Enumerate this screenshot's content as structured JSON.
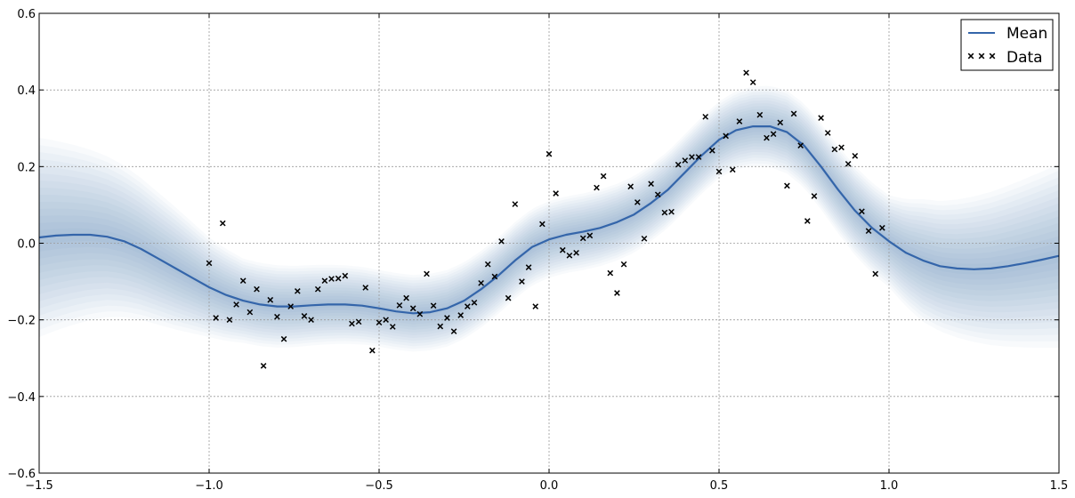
{
  "chart_data": {
    "type": "line",
    "xlim": [
      -1.5,
      1.5
    ],
    "ylim": [
      -0.6,
      0.6
    ],
    "xticks": [
      -1.5,
      -1.0,
      -0.5,
      0.0,
      0.5,
      1.0,
      1.5
    ],
    "xtick_labels": [
      "−1.5",
      "−1.0",
      "−0.5",
      "0.0",
      "0.5",
      "1.0",
      "1.5"
    ],
    "yticks": [
      -0.6,
      -0.4,
      -0.2,
      0.0,
      0.2,
      0.4,
      0.6
    ],
    "ytick_labels": [
      "−0.6",
      "−0.4",
      "−0.2",
      "0.0",
      "0.2",
      "0.4",
      "0.6"
    ],
    "grid": true,
    "legend_position": "top-right",
    "colors": {
      "mean": "#3465aa",
      "band": "#3465aa",
      "data": "#000000"
    },
    "series": [
      {
        "name": "Mean",
        "kind": "line",
        "points": [
          [
            -1.5,
            0.015
          ],
          [
            -1.45,
            0.02
          ],
          [
            -1.4,
            0.022
          ],
          [
            -1.35,
            0.022
          ],
          [
            -1.3,
            0.017
          ],
          [
            -1.25,
            0.005
          ],
          [
            -1.2,
            -0.015
          ],
          [
            -1.15,
            -0.04
          ],
          [
            -1.1,
            -0.065
          ],
          [
            -1.05,
            -0.09
          ],
          [
            -1.0,
            -0.115
          ],
          [
            -0.95,
            -0.135
          ],
          [
            -0.9,
            -0.15
          ],
          [
            -0.85,
            -0.16
          ],
          [
            -0.8,
            -0.165
          ],
          [
            -0.75,
            -0.165
          ],
          [
            -0.7,
            -0.162
          ],
          [
            -0.65,
            -0.16
          ],
          [
            -0.6,
            -0.16
          ],
          [
            -0.55,
            -0.163
          ],
          [
            -0.5,
            -0.17
          ],
          [
            -0.45,
            -0.178
          ],
          [
            -0.4,
            -0.183
          ],
          [
            -0.35,
            -0.18
          ],
          [
            -0.3,
            -0.17
          ],
          [
            -0.25,
            -0.15
          ],
          [
            -0.2,
            -0.12
          ],
          [
            -0.15,
            -0.085
          ],
          [
            -0.1,
            -0.045
          ],
          [
            -0.05,
            -0.01
          ],
          [
            0.0,
            0.01
          ],
          [
            0.05,
            0.022
          ],
          [
            0.1,
            0.03
          ],
          [
            0.15,
            0.04
          ],
          [
            0.2,
            0.055
          ],
          [
            0.25,
            0.075
          ],
          [
            0.3,
            0.105
          ],
          [
            0.35,
            0.14
          ],
          [
            0.4,
            0.185
          ],
          [
            0.45,
            0.23
          ],
          [
            0.5,
            0.27
          ],
          [
            0.55,
            0.295
          ],
          [
            0.6,
            0.305
          ],
          [
            0.65,
            0.305
          ],
          [
            0.7,
            0.29
          ],
          [
            0.75,
            0.255
          ],
          [
            0.8,
            0.2
          ],
          [
            0.85,
            0.14
          ],
          [
            0.9,
            0.085
          ],
          [
            0.95,
            0.04
          ],
          [
            1.0,
            0.005
          ],
          [
            1.05,
            -0.025
          ],
          [
            1.1,
            -0.045
          ],
          [
            1.15,
            -0.06
          ],
          [
            1.2,
            -0.066
          ],
          [
            1.25,
            -0.068
          ],
          [
            1.3,
            -0.066
          ],
          [
            1.35,
            -0.06
          ],
          [
            1.4,
            -0.052
          ],
          [
            1.45,
            -0.043
          ],
          [
            1.5,
            -0.033
          ]
        ]
      },
      {
        "name": "Data",
        "kind": "scatter",
        "points": [
          [
            -1.0,
            -0.052
          ],
          [
            -0.98,
            -0.195
          ],
          [
            -0.96,
            0.052
          ],
          [
            -0.94,
            -0.2
          ],
          [
            -0.92,
            -0.16
          ],
          [
            -0.9,
            -0.098
          ],
          [
            -0.88,
            -0.18
          ],
          [
            -0.86,
            -0.12
          ],
          [
            -0.84,
            -0.32
          ],
          [
            -0.82,
            -0.148
          ],
          [
            -0.8,
            -0.192
          ],
          [
            -0.78,
            -0.25
          ],
          [
            -0.76,
            -0.165
          ],
          [
            -0.74,
            -0.125
          ],
          [
            -0.72,
            -0.19
          ],
          [
            -0.7,
            -0.2
          ],
          [
            -0.68,
            -0.12
          ],
          [
            -0.66,
            -0.098
          ],
          [
            -0.64,
            -0.093
          ],
          [
            -0.62,
            -0.092
          ],
          [
            -0.6,
            -0.085
          ],
          [
            -0.58,
            -0.21
          ],
          [
            -0.56,
            -0.205
          ],
          [
            -0.54,
            -0.116
          ],
          [
            -0.52,
            -0.28
          ],
          [
            -0.5,
            -0.207
          ],
          [
            -0.48,
            -0.2
          ],
          [
            -0.46,
            -0.218
          ],
          [
            -0.44,
            -0.162
          ],
          [
            -0.42,
            -0.143
          ],
          [
            -0.4,
            -0.17
          ],
          [
            -0.38,
            -0.185
          ],
          [
            -0.36,
            -0.08
          ],
          [
            -0.34,
            -0.163
          ],
          [
            -0.32,
            -0.217
          ],
          [
            -0.3,
            -0.195
          ],
          [
            -0.28,
            -0.23
          ],
          [
            -0.26,
            -0.188
          ],
          [
            -0.24,
            -0.165
          ],
          [
            -0.22,
            -0.155
          ],
          [
            -0.2,
            -0.104
          ],
          [
            -0.18,
            -0.055
          ],
          [
            -0.16,
            -0.087
          ],
          [
            -0.14,
            0.005
          ],
          [
            -0.12,
            -0.143
          ],
          [
            -0.1,
            0.102
          ],
          [
            -0.08,
            -0.1
          ],
          [
            -0.06,
            -0.063
          ],
          [
            -0.04,
            -0.165
          ],
          [
            -0.02,
            0.05
          ],
          [
            0.0,
            0.233
          ],
          [
            0.02,
            0.13
          ],
          [
            0.04,
            -0.018
          ],
          [
            0.06,
            -0.032
          ],
          [
            0.08,
            -0.025
          ],
          [
            0.1,
            0.013
          ],
          [
            0.12,
            0.02
          ],
          [
            0.14,
            0.145
          ],
          [
            0.16,
            0.175
          ],
          [
            0.18,
            -0.078
          ],
          [
            0.2,
            -0.13
          ],
          [
            0.22,
            -0.055
          ],
          [
            0.24,
            0.148
          ],
          [
            0.26,
            0.107
          ],
          [
            0.28,
            0.012
          ],
          [
            0.3,
            0.155
          ],
          [
            0.32,
            0.127
          ],
          [
            0.34,
            0.08
          ],
          [
            0.36,
            0.082
          ],
          [
            0.38,
            0.205
          ],
          [
            0.4,
            0.216
          ],
          [
            0.42,
            0.225
          ],
          [
            0.44,
            0.225
          ],
          [
            0.46,
            0.33
          ],
          [
            0.48,
            0.242
          ],
          [
            0.5,
            0.187
          ],
          [
            0.52,
            0.28
          ],
          [
            0.54,
            0.192
          ],
          [
            0.56,
            0.318
          ],
          [
            0.58,
            0.445
          ],
          [
            0.6,
            0.42
          ],
          [
            0.62,
            0.335
          ],
          [
            0.64,
            0.275
          ],
          [
            0.66,
            0.285
          ],
          [
            0.68,
            0.315
          ],
          [
            0.7,
            0.15
          ],
          [
            0.72,
            0.338
          ],
          [
            0.74,
            0.255
          ],
          [
            0.76,
            0.058
          ],
          [
            0.78,
            0.123
          ],
          [
            0.8,
            0.327
          ],
          [
            0.82,
            0.288
          ],
          [
            0.84,
            0.245
          ],
          [
            0.86,
            0.25
          ],
          [
            0.88,
            0.207
          ],
          [
            0.9,
            0.228
          ],
          [
            0.92,
            0.083
          ],
          [
            0.94,
            0.032
          ],
          [
            0.96,
            -0.08
          ],
          [
            0.98,
            0.04
          ]
        ]
      }
    ],
    "confidence_band_halfwidth": [
      [
        -1.5,
        0.26
      ],
      [
        -1.3,
        0.21
      ],
      [
        -1.1,
        0.16
      ],
      [
        -1.0,
        0.13
      ],
      [
        -0.9,
        0.11
      ],
      [
        -0.5,
        0.1
      ],
      [
        0.0,
        0.1
      ],
      [
        0.5,
        0.1
      ],
      [
        1.0,
        0.12
      ],
      [
        1.1,
        0.16
      ],
      [
        1.3,
        0.2
      ],
      [
        1.5,
        0.24
      ]
    ]
  }
}
